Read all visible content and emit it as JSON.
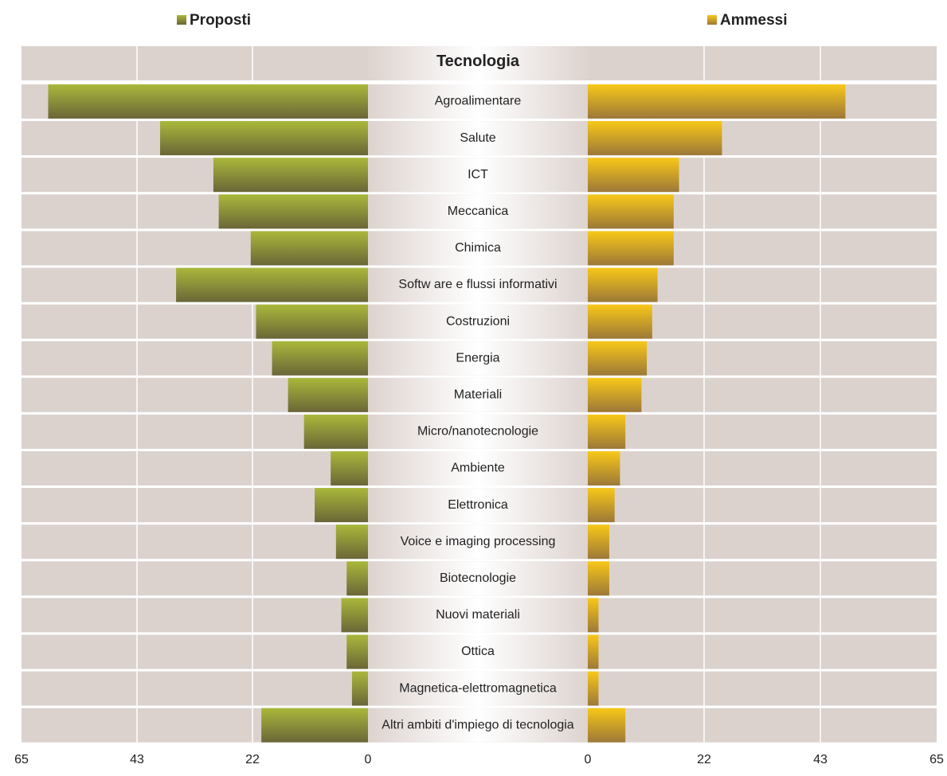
{
  "chart_data": {
    "type": "bar",
    "category_title": "Tecnologia",
    "categories": [
      "Agroalimentare",
      "Salute",
      "ICT",
      "Meccanica",
      "Chimica",
      "Softw are e flussi informativi",
      "Costruzioni",
      "Energia",
      "Materiali",
      "Micro/nanotecnologie",
      "Ambiente",
      "Elettronica",
      "Voice e imaging processing",
      "Biotecnologie",
      "Nuovi materiali",
      "Ottica",
      "Magnetica-elettromagnetica",
      "Altri ambiti d'impiego di tecnologia"
    ],
    "series": [
      {
        "name": "Proposti",
        "color": "#9aa53a",
        "values": [
          60,
          39,
          29,
          28,
          22,
          36,
          21,
          18,
          15,
          12,
          7,
          10,
          6,
          4,
          5,
          4,
          3,
          20
        ]
      },
      {
        "name": "Ammessi",
        "color": "#e8b820",
        "values": [
          48,
          25,
          17,
          16,
          16,
          13,
          12,
          11,
          10,
          7,
          6,
          5,
          4,
          4,
          2,
          2,
          2,
          7
        ]
      }
    ],
    "xlim": [
      0,
      65
    ],
    "xticks": [
      0,
      {
        "value": 21.67,
        "label": "22"
      },
      {
        "value": 43.33,
        "label": "43"
      },
      65
    ],
    "grid": true
  }
}
